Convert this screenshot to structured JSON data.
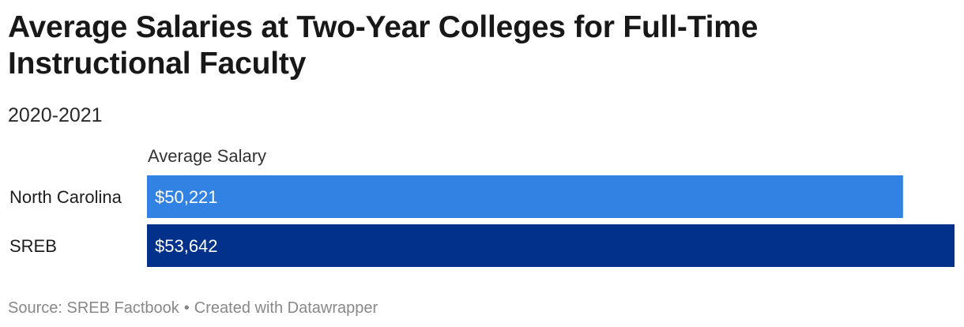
{
  "header": {
    "title": "Average Salaries at Two-Year Colleges for Full-Time Instructional Faculty",
    "subtitle": "2020-2021"
  },
  "chart_data": {
    "type": "bar",
    "orientation": "horizontal",
    "title": "Average Salaries at Two-Year Colleges for Full-Time Instructional Faculty",
    "subtitle": "2020-2021",
    "column_header": "Average Salary",
    "categories": [
      "North Carolina",
      "SREB"
    ],
    "values": [
      50221,
      53642
    ],
    "value_labels": [
      "$50,221",
      "$53,642"
    ],
    "colors": [
      "#3282e3",
      "#01318b"
    ],
    "xlim": [
      0,
      53642
    ],
    "grid": false,
    "legend": "none"
  },
  "footer": {
    "source": "Source: SREB Factbook",
    "separator": "•",
    "credit": "Created with Datawrapper"
  }
}
